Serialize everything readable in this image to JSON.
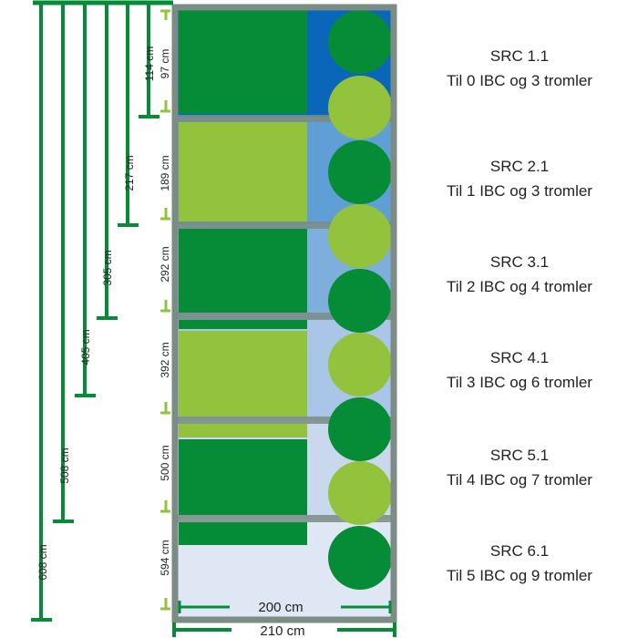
{
  "colors": {
    "dark_green": "#068c37",
    "light_green": "#93c23d",
    "frame": "#7b8c84",
    "background": "#ffffff"
  },
  "measures": {
    "outer": [
      {
        "text": "608 cm"
      },
      {
        "text": "508 cm"
      },
      {
        "text": "405 cm"
      },
      {
        "text": "305 cm"
      },
      {
        "text": "217 cm"
      },
      {
        "text": "114 cm"
      }
    ],
    "inner": [
      {
        "text": "97 cm"
      },
      {
        "text": "189 cm"
      },
      {
        "text": "292 cm"
      },
      {
        "text": "392 cm"
      },
      {
        "text": "500 cm"
      },
      {
        "text": "594 cm"
      }
    ],
    "width_inner": "200 cm",
    "width_outer": "210 cm"
  },
  "sections": [
    {
      "title": "SRC 1.1",
      "subtitle": "Til 0 IBC og 3 tromler"
    },
    {
      "title": "SRC 2.1",
      "subtitle": "Til 1 IBC og 3 tromler"
    },
    {
      "title": "SRC 3.1",
      "subtitle": "Til 2 IBC og 4 tromler"
    },
    {
      "title": "SRC 4.1",
      "subtitle": "Til 3 IBC og 6 tromler"
    },
    {
      "title": "SRC 5.1",
      "subtitle": "Til 4 IBC og 7 tromler"
    },
    {
      "title": "SRC 6.1",
      "subtitle": "Til 5 IBC og 9 tromler"
    }
  ]
}
